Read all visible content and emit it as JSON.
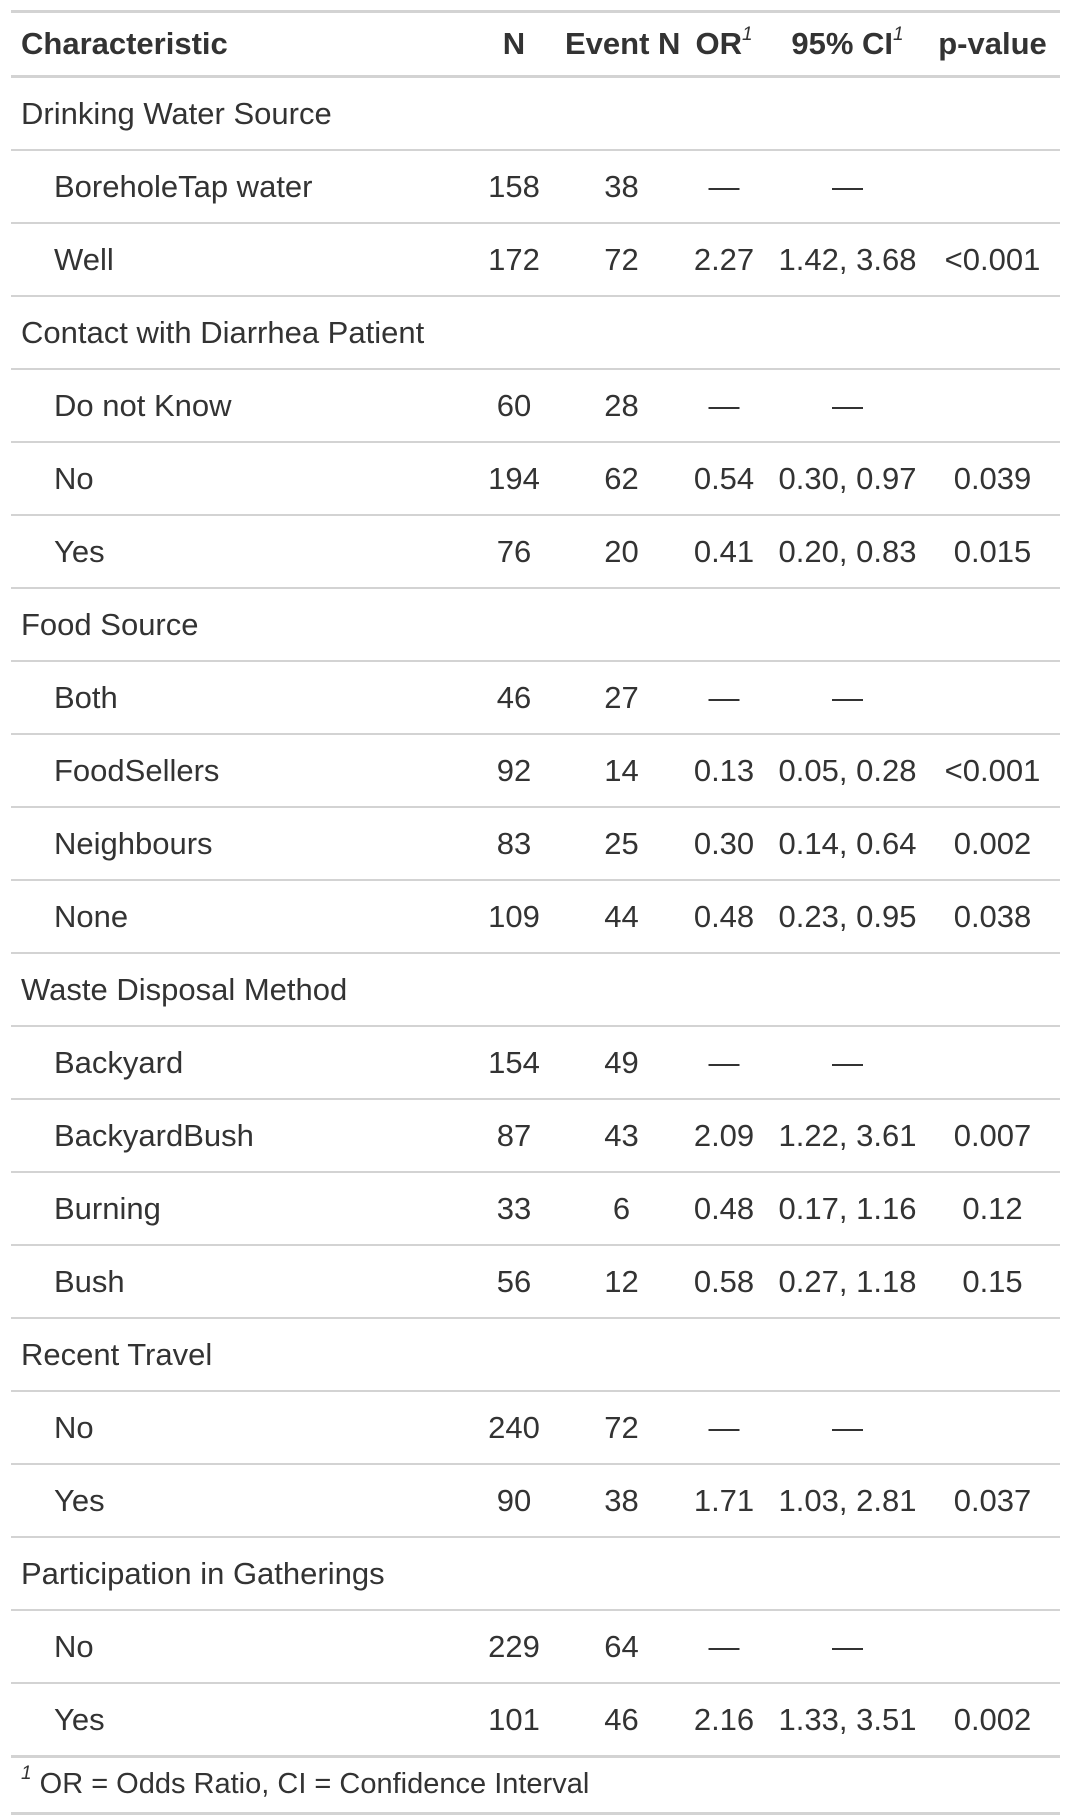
{
  "table": {
    "headers": {
      "characteristic": "Characteristic",
      "n": "N",
      "event_n": "Event N",
      "or": "OR",
      "or_mark": "1",
      "ci": "95% CI",
      "ci_mark": "1",
      "p_value": "p-value"
    },
    "rows": [
      {
        "label": "Drinking Water Source",
        "n": "",
        "event_n": "",
        "or": "",
        "ci": "",
        "p": ""
      },
      {
        "label": "BoreholeTap water",
        "n": "158",
        "event_n": "38",
        "or": "—",
        "ci": "—",
        "p": ""
      },
      {
        "label": "Well",
        "n": "172",
        "event_n": "72",
        "or": "2.27",
        "ci": "1.42, 3.68",
        "p": "<0.001"
      },
      {
        "label": "Contact with Diarrhea Patient",
        "n": "",
        "event_n": "",
        "or": "",
        "ci": "",
        "p": ""
      },
      {
        "label": "Do not Know",
        "n": "60",
        "event_n": "28",
        "or": "—",
        "ci": "—",
        "p": ""
      },
      {
        "label": "No",
        "n": "194",
        "event_n": "62",
        "or": "0.54",
        "ci": "0.30, 0.97",
        "p": "0.039"
      },
      {
        "label": "Yes",
        "n": "76",
        "event_n": "20",
        "or": "0.41",
        "ci": "0.20, 0.83",
        "p": "0.015"
      },
      {
        "label": "Food Source",
        "n": "",
        "event_n": "",
        "or": "",
        "ci": "",
        "p": ""
      },
      {
        "label": "Both",
        "n": "46",
        "event_n": "27",
        "or": "—",
        "ci": "—",
        "p": ""
      },
      {
        "label": "FoodSellers",
        "n": "92",
        "event_n": "14",
        "or": "0.13",
        "ci": "0.05, 0.28",
        "p": "<0.001"
      },
      {
        "label": "Neighbours",
        "n": "83",
        "event_n": "25",
        "or": "0.30",
        "ci": "0.14, 0.64",
        "p": "0.002"
      },
      {
        "label": "None",
        "n": "109",
        "event_n": "44",
        "or": "0.48",
        "ci": "0.23, 0.95",
        "p": "0.038"
      },
      {
        "label": "Waste Disposal Method",
        "n": "",
        "event_n": "",
        "or": "",
        "ci": "",
        "p": ""
      },
      {
        "label": "Backyard",
        "n": "154",
        "event_n": "49",
        "or": "—",
        "ci": "—",
        "p": ""
      },
      {
        "label": "BackyardBush",
        "n": "87",
        "event_n": "43",
        "or": "2.09",
        "ci": "1.22, 3.61",
        "p": "0.007"
      },
      {
        "label": "Burning",
        "n": "33",
        "event_n": "6",
        "or": "0.48",
        "ci": "0.17, 1.16",
        "p": "0.12"
      },
      {
        "label": "Bush",
        "n": "56",
        "event_n": "12",
        "or": "0.58",
        "ci": "0.27, 1.18",
        "p": "0.15"
      },
      {
        "label": "Recent Travel",
        "n": "",
        "event_n": "",
        "or": "",
        "ci": "",
        "p": ""
      },
      {
        "label": "No",
        "n": "240",
        "event_n": "72",
        "or": "—",
        "ci": "—",
        "p": ""
      },
      {
        "label": "Yes",
        "n": "90",
        "event_n": "38",
        "or": "1.71",
        "ci": "1.03, 2.81",
        "p": "0.037"
      },
      {
        "label": "Participation in Gatherings",
        "n": "",
        "event_n": "",
        "or": "",
        "ci": "",
        "p": ""
      },
      {
        "label": "No",
        "n": "229",
        "event_n": "64",
        "or": "—",
        "ci": "—",
        "p": ""
      },
      {
        "label": "Yes",
        "n": "101",
        "event_n": "46",
        "or": "2.16",
        "ci": "1.33, 3.51",
        "p": "0.002"
      }
    ],
    "footnote": {
      "mark": "1",
      "text": " OR = Odds Ratio, CI = Confidence Interval"
    }
  }
}
